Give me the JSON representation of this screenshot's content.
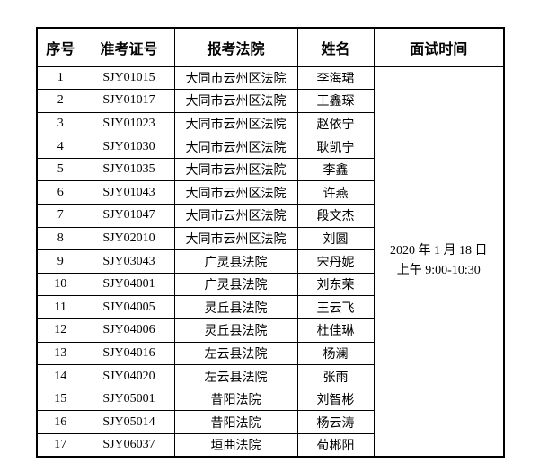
{
  "colors": {
    "background": "#ffffff",
    "border": "#000000",
    "text": "#000000"
  },
  "table": {
    "headers": [
      "序号",
      "准考证号",
      "报考法院",
      "姓名",
      "面试时间"
    ],
    "rows": [
      {
        "no": "1",
        "ticket": "SJY01015",
        "court": "大同市云州区法院",
        "name": "李海珺"
      },
      {
        "no": "2",
        "ticket": "SJY01017",
        "court": "大同市云州区法院",
        "name": "王鑫琛"
      },
      {
        "no": "3",
        "ticket": "SJY01023",
        "court": "大同市云州区法院",
        "name": "赵依宁"
      },
      {
        "no": "4",
        "ticket": "SJY01030",
        "court": "大同市云州区法院",
        "name": "耿凯宁"
      },
      {
        "no": "5",
        "ticket": "SJY01035",
        "court": "大同市云州区法院",
        "name": "李鑫"
      },
      {
        "no": "6",
        "ticket": "SJY01043",
        "court": "大同市云州区法院",
        "name": "许燕"
      },
      {
        "no": "7",
        "ticket": "SJY01047",
        "court": "大同市云州区法院",
        "name": "段文杰"
      },
      {
        "no": "8",
        "ticket": "SJY02010",
        "court": "大同市云州区法院",
        "name": "刘圆"
      },
      {
        "no": "9",
        "ticket": "SJY03043",
        "court": "广灵县法院",
        "name": "宋丹妮"
      },
      {
        "no": "10",
        "ticket": "SJY04001",
        "court": "广灵县法院",
        "name": "刘东荣"
      },
      {
        "no": "11",
        "ticket": "SJY04005",
        "court": "灵丘县法院",
        "name": "王云飞"
      },
      {
        "no": "12",
        "ticket": "SJY04006",
        "court": "灵丘县法院",
        "name": "杜佳琳"
      },
      {
        "no": "13",
        "ticket": "SJY04016",
        "court": "左云县法院",
        "name": "杨澜"
      },
      {
        "no": "14",
        "ticket": "SJY04020",
        "court": "左云县法院",
        "name": "张雨"
      },
      {
        "no": "15",
        "ticket": "SJY05001",
        "court": "昔阳法院",
        "name": "刘智彬"
      },
      {
        "no": "16",
        "ticket": "SJY05014",
        "court": "昔阳法院",
        "name": "杨云涛"
      },
      {
        "no": "17",
        "ticket": "SJY06037",
        "court": "垣曲法院",
        "name": "荀郴阳"
      }
    ],
    "interview_time": {
      "line1": "2020 年 1 月 18 日",
      "line2": "上午 9:00-10:30"
    }
  }
}
